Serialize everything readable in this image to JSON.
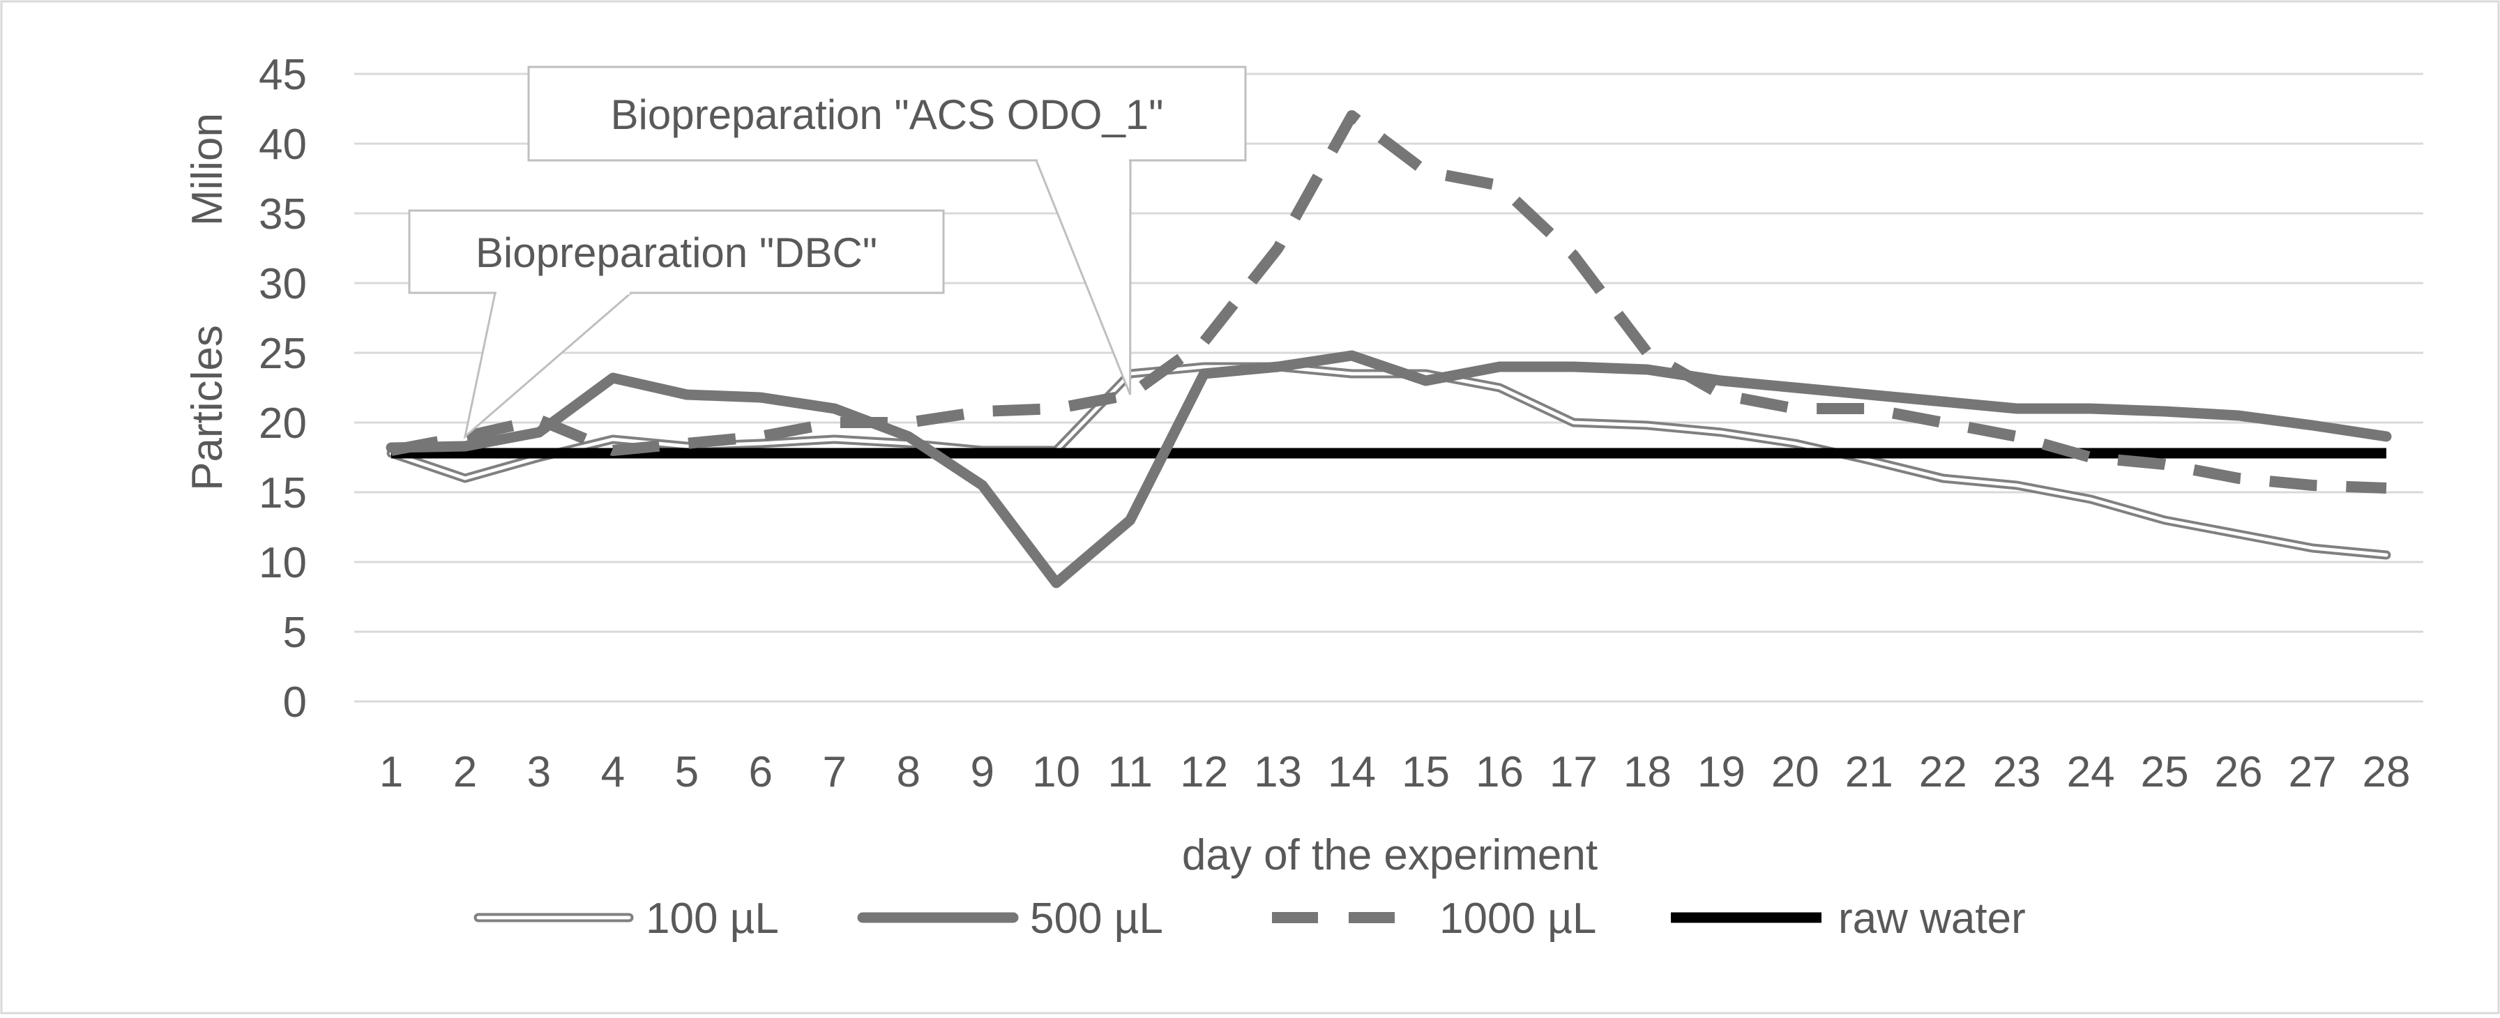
{
  "chart_data": {
    "type": "line",
    "title": "",
    "xlabel": "day of the experiment",
    "ylabel": "Particles",
    "ylabel_unit": "Milion",
    "ylim": [
      0,
      45
    ],
    "yticks": [
      "0",
      "5",
      "10",
      "15",
      "20",
      "25",
      "30",
      "35",
      "40",
      "45"
    ],
    "categories": [
      "1",
      "2",
      "3",
      "4",
      "5",
      "6",
      "7",
      "8",
      "9",
      "10",
      "11",
      "12",
      "13",
      "14",
      "15",
      "16",
      "17",
      "18",
      "19",
      "20",
      "21",
      "22",
      "23",
      "24",
      "25",
      "26",
      "27",
      "28"
    ],
    "series": [
      {
        "name": "100 µL",
        "style": "double",
        "color": "#808080",
        "values": [
          17.8,
          16.0,
          17.5,
          18.8,
          18.3,
          18.5,
          18.8,
          18.5,
          18.0,
          18.0,
          23.5,
          24.0,
          24.0,
          23.5,
          23.5,
          22.5,
          20.0,
          19.8,
          19.3,
          18.5,
          17.3,
          16.0,
          15.5,
          14.5,
          13.0,
          12.0,
          11.0,
          10.5
        ]
      },
      {
        "name": "500 µL",
        "style": "solid-thick",
        "color": "#767676",
        "values": [
          18.2,
          18.3,
          19.3,
          23.2,
          22.0,
          21.8,
          21.0,
          19.0,
          15.5,
          8.5,
          13.0,
          23.5,
          24.0,
          24.8,
          23.0,
          24.0,
          24.0,
          23.8,
          23.0,
          22.5,
          22.0,
          21.5,
          21.0,
          21.0,
          20.8,
          20.5,
          19.8,
          19.0
        ]
      },
      {
        "name": "1000 µL",
        "style": "dashed",
        "color": "#767676",
        "values": [
          18.0,
          19.0,
          20.2,
          18.0,
          18.5,
          19.0,
          20.0,
          20.0,
          20.8,
          21.0,
          22.0,
          25.8,
          32.5,
          42.0,
          38.0,
          37.0,
          32.0,
          25.0,
          22.0,
          21.0,
          21.0,
          20.0,
          19.0,
          17.5,
          17.0,
          16.0,
          15.5,
          15.3
        ]
      },
      {
        "name": "raw water",
        "style": "solid-black",
        "color": "#000000",
        "values": [
          17.8,
          17.8,
          17.8,
          17.8,
          17.8,
          17.8,
          17.8,
          17.8,
          17.8,
          17.8,
          17.8,
          17.8,
          17.8,
          17.8,
          17.8,
          17.8,
          17.8,
          17.8,
          17.8,
          17.8,
          17.8,
          17.8,
          17.8,
          17.8,
          17.8,
          17.8,
          17.8,
          17.8
        ]
      }
    ],
    "annotations": [
      {
        "text": "Biopreparation \"ACS ODO_1\"",
        "target_category": "11",
        "target_series": "1000 µL"
      },
      {
        "text": "Biopreparation \"DBC\"",
        "target_category": "2",
        "target_series": "1000 µL"
      }
    ],
    "grid": true,
    "legend_position": "bottom"
  }
}
